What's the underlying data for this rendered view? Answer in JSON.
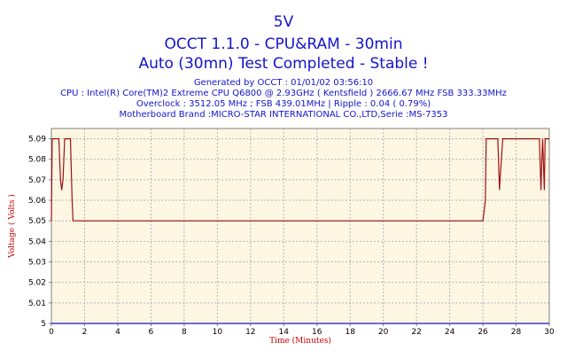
{
  "header": {
    "title": "5V",
    "subtitle": "OCCT 1.1.0 - CPU&RAM - 30min",
    "status": "Auto (30mn) Test Completed - Stable !"
  },
  "info": {
    "generated": "Generated by OCCT : 01/01/02 03:56:10",
    "cpu": "CPU : Intel(R) Core(TM)2 Extreme CPU Q6800  @ 2.93GHz ( Kentsfield ) 2666.67 MHz FSB 333.33MHz",
    "overclock": "Overclock : 3512.05 MHz ; FSB 439.01MHz | Ripple : 0.04 ( 0.79%)",
    "motherboard": "Motherboard Brand :MICRO-STAR INTERNATIONAL CO.,LTD,Serie :MS-7353"
  },
  "colors": {
    "plot_background": "#fdf6e3",
    "series": "#a01010",
    "reference": "#1414cc",
    "title_text": "#1414cc",
    "axis_title": "#c80000"
  },
  "chart_data": {
    "type": "line",
    "xlabel": "Time (Minutes)",
    "ylabel": "Voltage ( Volts )",
    "xlim": [
      0,
      30
    ],
    "ylim": [
      5,
      5.095
    ],
    "xticks": [
      0,
      2,
      4,
      6,
      8,
      10,
      12,
      14,
      16,
      18,
      20,
      22,
      24,
      26,
      28,
      30
    ],
    "yticks": [
      5,
      5.01,
      5.02,
      5.03,
      5.04,
      5.05,
      5.06,
      5.07,
      5.08,
      5.09
    ],
    "ytick_labels": [
      "5",
      "5.01",
      "5.02",
      "5.03",
      "5.04",
      "5.05",
      "5.06",
      "5.07",
      "5.08",
      "5.09"
    ],
    "grid": true,
    "series": [
      {
        "x": [
          0,
          0.05,
          0.15,
          0.45,
          0.55,
          0.62,
          0.7,
          0.8,
          1.0,
          1.15,
          1.25,
          1.3,
          26.0,
          26.15,
          26.2,
          26.9,
          27.0,
          27.05,
          27.2,
          27.3,
          29.4,
          29.5,
          29.55,
          29.6,
          29.7,
          29.75,
          29.8,
          30
        ],
        "y": [
          5.05,
          5.09,
          5.09,
          5.09,
          5.07,
          5.065,
          5.07,
          5.09,
          5.09,
          5.09,
          5.06,
          5.05,
          5.05,
          5.06,
          5.09,
          5.09,
          5.065,
          5.072,
          5.09,
          5.09,
          5.09,
          5.065,
          5.08,
          5.09,
          5.065,
          5.09,
          5.09,
          5.09
        ]
      },
      {
        "x": [
          0,
          30
        ],
        "y": [
          5,
          5
        ]
      }
    ]
  }
}
